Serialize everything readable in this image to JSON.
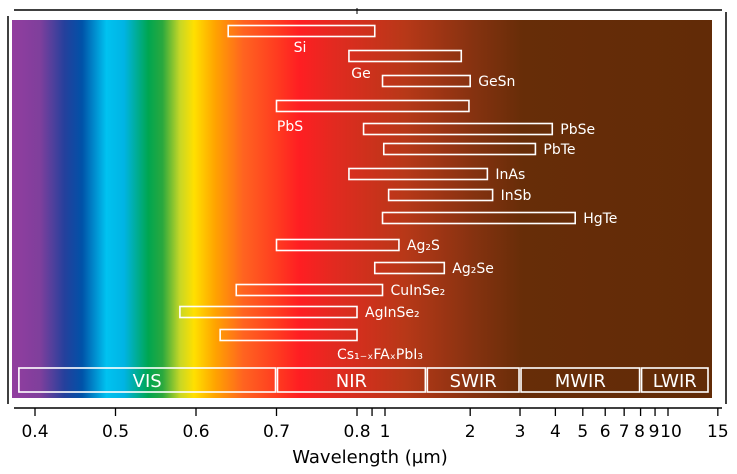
{
  "chart_data": {
    "type": "bar",
    "orientation": "horizontal-range",
    "xlabel": "Wavelength (µm)",
    "ylabel": "",
    "xlim": [
      0.38,
      15
    ],
    "x_scale": "linear from 0.4 to 0.8 µm, logarithmic above 0.8 µm",
    "x_ticks": [
      0.4,
      0.5,
      0.6,
      0.7,
      0.8,
      0.9,
      1,
      2,
      3,
      4,
      5,
      6,
      7,
      8,
      9,
      10,
      15
    ],
    "x_tick_labels": [
      "0.4",
      "0.5",
      "0.6",
      "0.7",
      "0.8",
      "",
      "1",
      "2",
      "3",
      "4",
      "5",
      "6",
      "7",
      "8",
      "9",
      "10",
      "15"
    ],
    "grid": false,
    "background": "visible-to-infrared color spectrum",
    "bars": [
      {
        "label": "Si",
        "start": 0.64,
        "end": 0.92
      },
      {
        "label": "Ge",
        "start": 0.79,
        "end": 1.86
      },
      {
        "label": "GeSn",
        "start": 0.98,
        "end": 2.0
      },
      {
        "label": "PbS",
        "start": 0.7,
        "end": 1.98
      },
      {
        "label": "PbSe",
        "start": 0.84,
        "end": 3.9
      },
      {
        "label": "PbTe",
        "start": 0.99,
        "end": 3.4
      },
      {
        "label": "InAs",
        "start": 0.79,
        "end": 2.3
      },
      {
        "label": "InSb",
        "start": 1.03,
        "end": 2.4
      },
      {
        "label": "HgTe",
        "start": 0.98,
        "end": 4.7
      },
      {
        "label": "Ag₂S",
        "start": 0.7,
        "end": 1.12
      },
      {
        "label": "Ag₂Se",
        "start": 0.92,
        "end": 1.62
      },
      {
        "label": "CuInSe₂",
        "start": 0.65,
        "end": 0.98
      },
      {
        "label": "AgInSe₂",
        "start": 0.58,
        "end": 0.8
      },
      {
        "label": "Cs₁₋ₓFAₓPbI₃",
        "start": 0.63,
        "end": 0.8
      }
    ],
    "bands": [
      {
        "label": "VIS",
        "start": 0.38,
        "end": 0.7
      },
      {
        "label": "NIR",
        "start": 0.7,
        "end": 1.4
      },
      {
        "label": "SWIR",
        "start": 1.4,
        "end": 3
      },
      {
        "label": "MWIR",
        "start": 3,
        "end": 8
      },
      {
        "label": "LWIR",
        "start": 8,
        "end": 15
      }
    ],
    "colors": {
      "bar_outline": "#ffffff",
      "label": "#ffffff",
      "axis": "#000000",
      "far_infrared": "#632c08"
    }
  }
}
